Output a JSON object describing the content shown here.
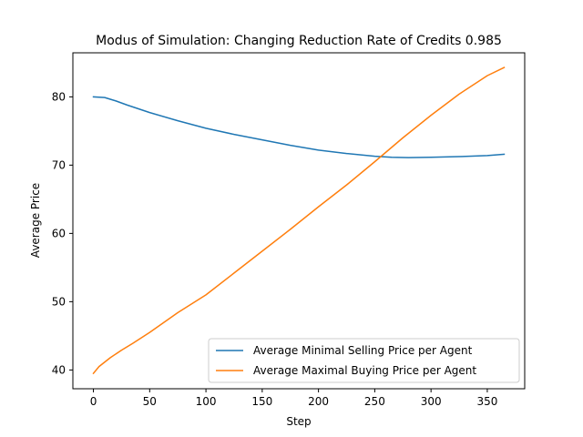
{
  "chart_data": {
    "type": "line",
    "title": "Modus of Simulation: Changing Reduction Rate of Credits 0.985",
    "xlabel": "Step",
    "ylabel": "Average Price",
    "xlim": [
      -18.25,
      383.25
    ],
    "ylim": [
      37.25,
      86.45
    ],
    "xticks": [
      0,
      50,
      100,
      150,
      200,
      250,
      300,
      350
    ],
    "yticks": [
      40,
      50,
      60,
      70,
      80
    ],
    "grid": false,
    "legend_position": "lower right",
    "series": [
      {
        "name": "Average Minimal Selling Price per Agent",
        "color": "#1f77b4",
        "x": [
          0,
          10,
          20,
          30,
          50,
          75,
          100,
          125,
          150,
          175,
          200,
          225,
          250,
          265,
          280,
          300,
          325,
          350,
          365
        ],
        "y": [
          80.0,
          79.9,
          79.4,
          78.8,
          77.7,
          76.5,
          75.4,
          74.5,
          73.7,
          72.9,
          72.2,
          71.7,
          71.3,
          71.15,
          71.1,
          71.15,
          71.25,
          71.4,
          71.6
        ]
      },
      {
        "name": "Average Maximal Buying Price per Agent",
        "color": "#ff7f0e",
        "x": [
          0,
          5,
          15,
          25,
          35,
          50,
          75,
          100,
          125,
          150,
          175,
          200,
          225,
          250,
          275,
          300,
          325,
          350,
          365
        ],
        "y": [
          39.5,
          40.5,
          41.8,
          42.9,
          43.9,
          45.5,
          48.4,
          51.0,
          54.2,
          57.4,
          60.6,
          63.9,
          67.1,
          70.5,
          74.0,
          77.3,
          80.4,
          83.1,
          84.3
        ]
      }
    ]
  }
}
